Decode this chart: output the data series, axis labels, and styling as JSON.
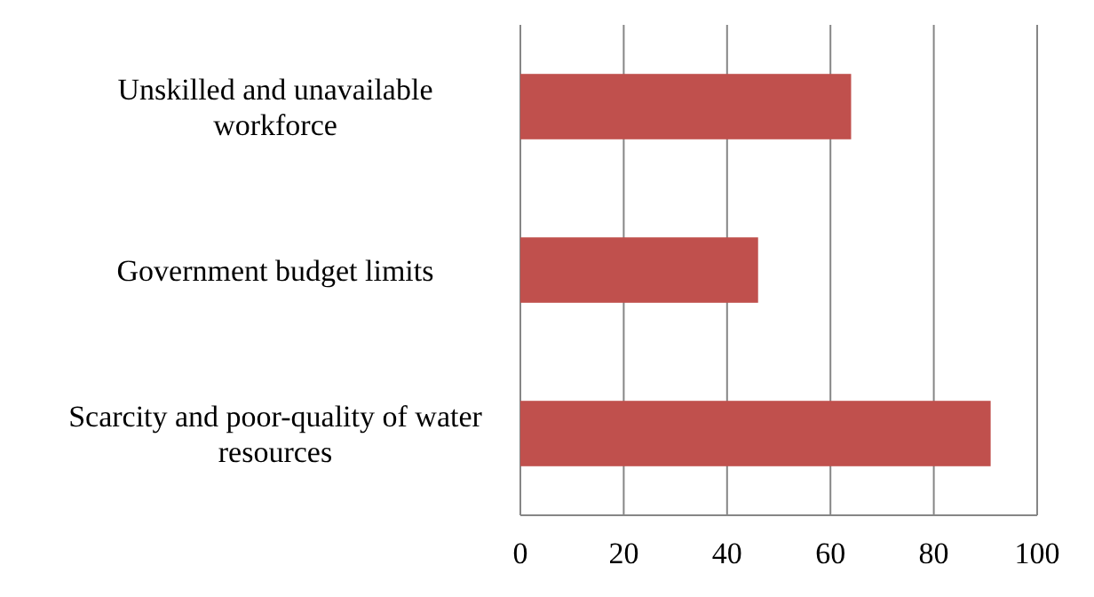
{
  "chart_data": {
    "type": "bar",
    "orientation": "horizontal",
    "categories": [
      "Unskilled and unavailable workforce",
      "Government budget limits",
      "Scarcity and poor-quality of water resources"
    ],
    "values": [
      64,
      46,
      91
    ],
    "color": "#c0504d",
    "xlim": [
      0,
      100
    ],
    "xticks": [
      0,
      20,
      40,
      60,
      80,
      100
    ],
    "grid": "x"
  }
}
